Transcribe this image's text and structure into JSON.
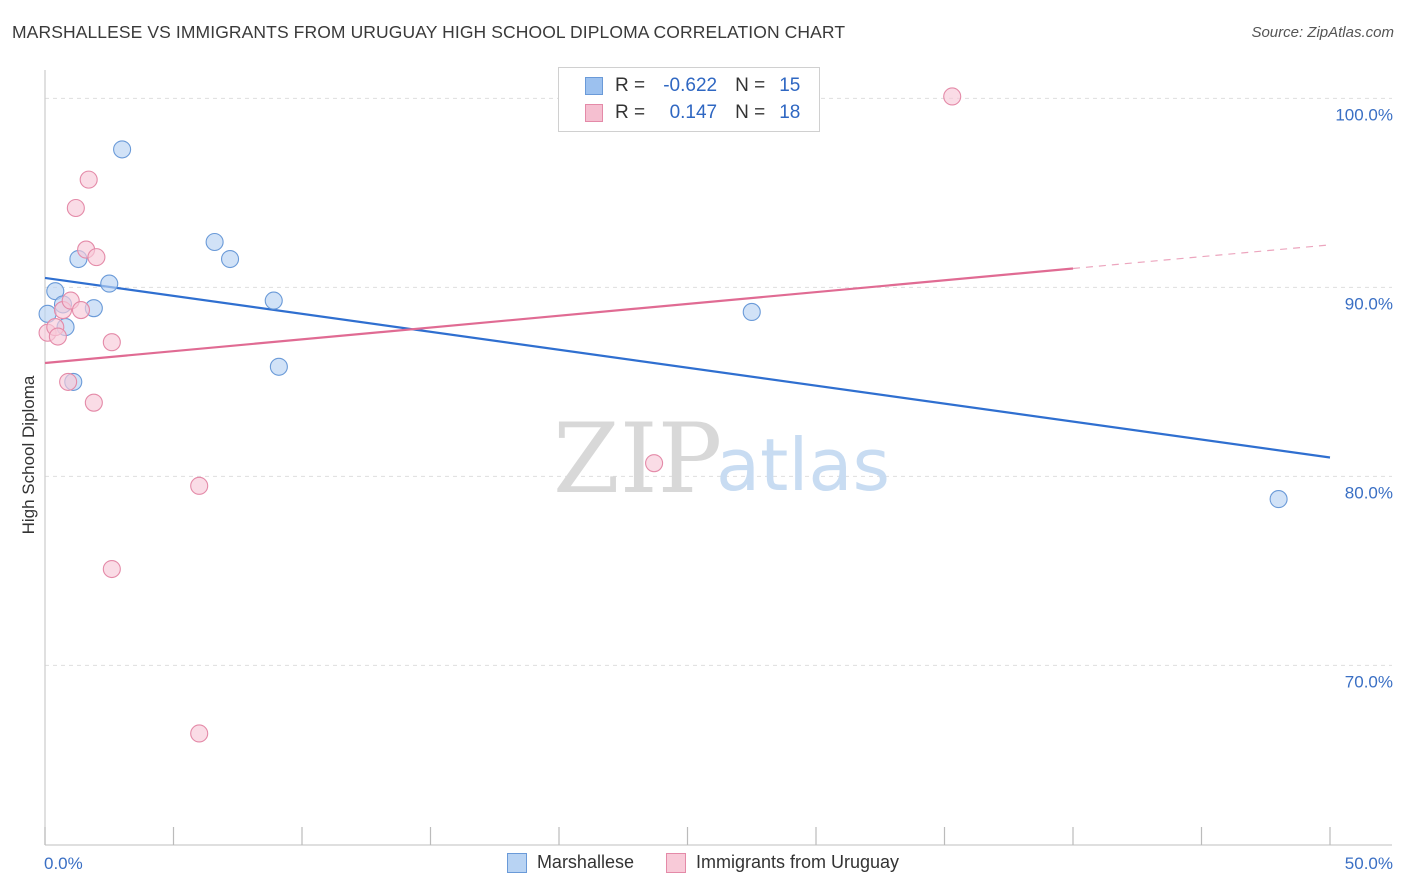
{
  "title": "MARSHALLESE VS IMMIGRANTS FROM URUGUAY HIGH SCHOOL DIPLOMA CORRELATION CHART",
  "source": "Source: ZipAtlas.com",
  "watermark": {
    "zip": "ZIP",
    "atlas": "atlas"
  },
  "legend_top": {
    "rows": [
      {
        "r_label": "R =",
        "r_value": "-0.622",
        "n_label": "N =",
        "n_value": "15",
        "color": "#9cc1ef",
        "border": "#6a9ad8"
      },
      {
        "r_label": "R =",
        "r_value": "0.147",
        "n_label": "N =",
        "n_value": "18",
        "color": "#f5bfd0",
        "border": "#e48aa8"
      }
    ]
  },
  "legend_bottom": [
    {
      "label": "Marshallese",
      "color": "#b8d3f3",
      "border": "#6a9ad8"
    },
    {
      "label": "Immigrants from Uruguay",
      "color": "#f8cad8",
      "border": "#e48aa8"
    }
  ],
  "chart_data": {
    "type": "scatter",
    "title": "MARSHALLESE VS IMMIGRANTS FROM URUGUAY HIGH SCHOOL DIPLOMA CORRELATION CHART",
    "xlabel": "",
    "ylabel": "High School Diploma",
    "xlim": [
      0,
      50
    ],
    "ylim": [
      60.5,
      101.5
    ],
    "x_tick_labels": [
      "0.0%",
      "50.0%"
    ],
    "y_ticks": [
      70,
      80,
      90,
      100
    ],
    "y_tick_labels": [
      "70.0%",
      "80.0%",
      "90.0%",
      "100.0%"
    ],
    "grid": true,
    "series": [
      {
        "name": "Marshallese",
        "color": "#2f6fd0",
        "fill": "#b8d3f3",
        "points": [
          [
            0.1,
            88.6
          ],
          [
            0.4,
            89.8
          ],
          [
            0.7,
            89.1
          ],
          [
            0.8,
            87.9
          ],
          [
            1.1,
            85.0
          ],
          [
            1.3,
            91.5
          ],
          [
            1.9,
            88.9
          ],
          [
            2.5,
            90.2
          ],
          [
            3.0,
            97.3
          ],
          [
            6.6,
            92.4
          ],
          [
            7.2,
            91.5
          ],
          [
            8.9,
            89.3
          ],
          [
            9.1,
            85.8
          ],
          [
            27.5,
            88.7
          ],
          [
            48.0,
            78.8
          ]
        ],
        "trend": {
          "x": [
            0,
            50
          ],
          "y": [
            90.5,
            81.0
          ]
        }
      },
      {
        "name": "Immigrants from Uruguay",
        "color": "#e06b93",
        "fill": "#f8cad8",
        "points": [
          [
            0.1,
            87.6
          ],
          [
            0.4,
            87.9
          ],
          [
            0.5,
            87.4
          ],
          [
            0.7,
            88.8
          ],
          [
            0.9,
            85.0
          ],
          [
            1.0,
            89.3
          ],
          [
            1.2,
            94.2
          ],
          [
            1.4,
            88.8
          ],
          [
            1.6,
            92.0
          ],
          [
            1.7,
            95.7
          ],
          [
            1.9,
            83.9
          ],
          [
            2.0,
            91.6
          ],
          [
            2.6,
            87.1
          ],
          [
            2.6,
            75.1
          ],
          [
            6.0,
            79.5
          ],
          [
            6.0,
            66.4
          ],
          [
            23.7,
            80.7
          ],
          [
            35.3,
            100.1
          ]
        ],
        "trend": {
          "x": [
            0,
            40
          ],
          "y": [
            86.0,
            91.0
          ]
        },
        "trend_dashed": {
          "x": [
            40,
            50
          ],
          "y": [
            91.0,
            92.25
          ]
        }
      }
    ]
  }
}
